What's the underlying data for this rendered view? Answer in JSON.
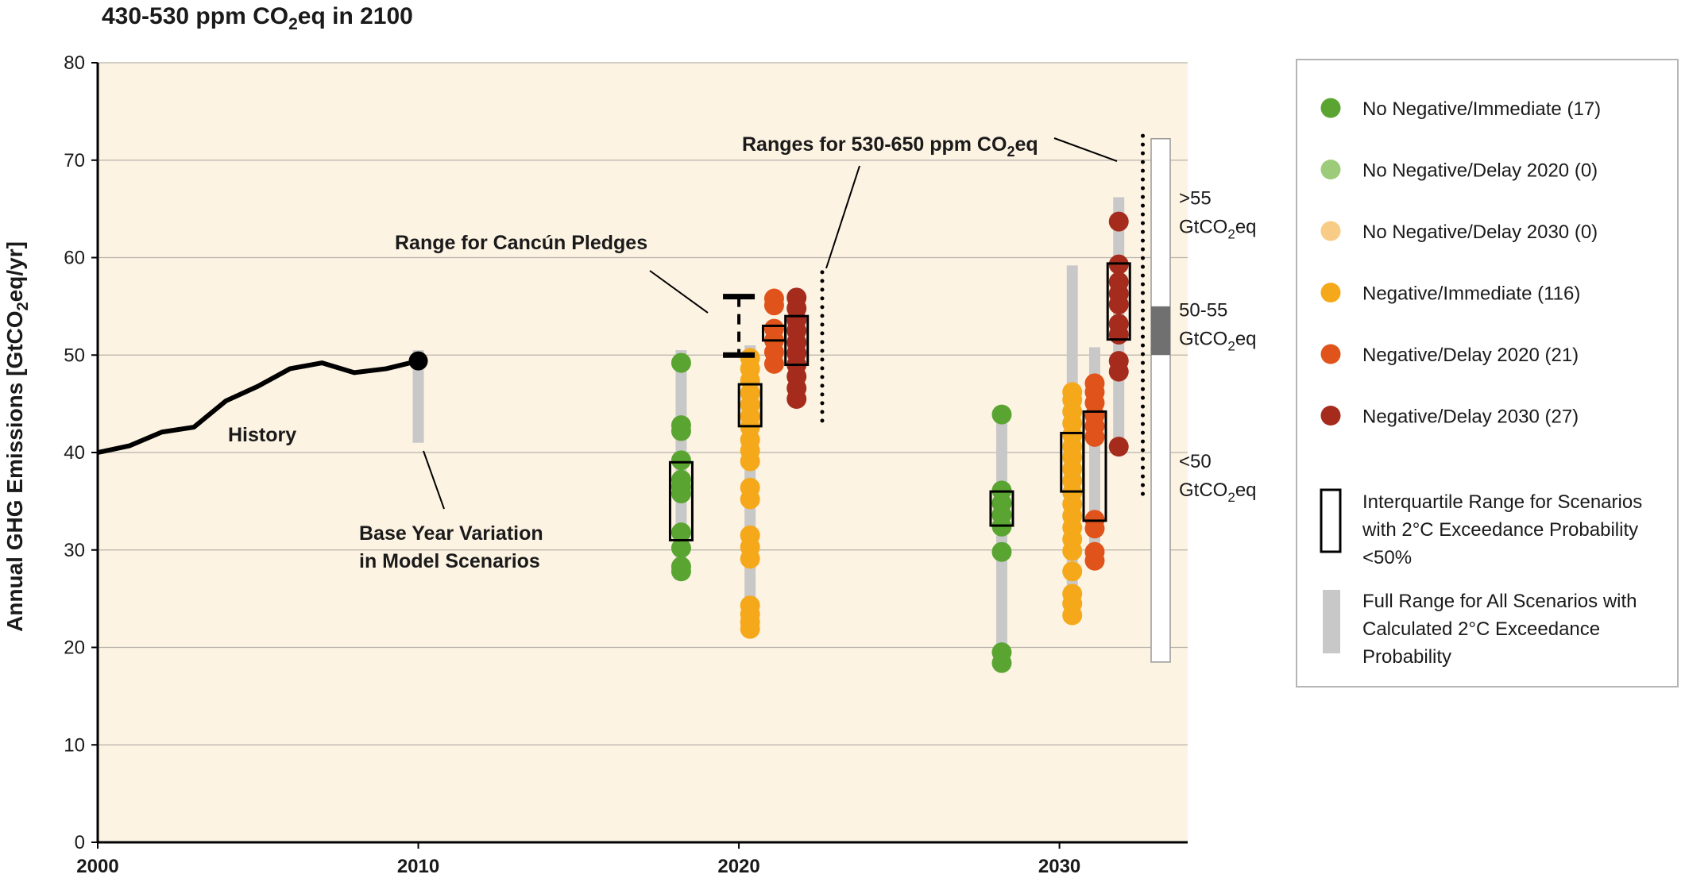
{
  "chart_data": {
    "type": "scatter",
    "title_parts": [
      "430-530 ppm CO",
      "2",
      "eq in 2100"
    ],
    "ylabel_parts": [
      "Annual GHG Emissions [GtCO",
      "2",
      "eq/yr]"
    ],
    "xlim": [
      2000,
      2034
    ],
    "ylim": [
      0,
      80
    ],
    "x_ticks": [
      "2000",
      "2010",
      "2020",
      "2030"
    ],
    "y_ticks": [
      "0",
      "10",
      "20",
      "30",
      "40",
      "50",
      "60",
      "70",
      "80"
    ],
    "grid": true,
    "colors": {
      "plot_bg": "#fdf3e3",
      "history": "#000000",
      "full_range": "#c8c8c8",
      "no_neg_immediate": "#5aa532",
      "no_neg_delay2020": "#9ccc7a",
      "no_neg_delay2030": "#f8cc86",
      "neg_immediate": "#f5a91a",
      "neg_delay2020": "#e0541b",
      "neg_delay2030": "#a52b1d"
    },
    "history": {
      "label": "History",
      "x": [
        2000,
        2001,
        2002,
        2003,
        2004,
        2005,
        2006,
        2007,
        2008,
        2009,
        2010
      ],
      "y": [
        40.0,
        40.7,
        42.1,
        42.6,
        45.3,
        46.8,
        48.6,
        49.2,
        48.2,
        48.6,
        49.4
      ]
    },
    "base_year_variation": {
      "x": 2010,
      "range": [
        41,
        50.5
      ],
      "label_lines": [
        "Base Year Variation",
        "in Model Scenarios"
      ]
    },
    "cancun_pledges": {
      "x": 2020,
      "low": 50,
      "high": 56,
      "label": "Range for Cancún Pledges"
    },
    "ranges_530_650_label_parts": [
      "Ranges for 530-650 ppm CO",
      "2",
      "eq"
    ],
    "ranges_530_650": [
      {
        "x": 2022.6,
        "low": 42.5,
        "high": 58.5
      },
      {
        "x": 2032.6,
        "low": 35.5,
        "high": 72.5
      }
    ],
    "groups": [
      {
        "series": "No Negative/Immediate",
        "color_key": "no_neg_immediate",
        "x": 2018.2,
        "full_range": [
          27.5,
          50.5
        ],
        "iqr": [
          31,
          39
        ],
        "points": [
          27.8,
          28.3,
          30.2,
          31.8,
          35.8,
          36.5,
          37.2,
          39.2,
          42.2,
          42.8,
          49.2
        ]
      },
      {
        "series": "Negative/Immediate",
        "color_key": "neg_immediate",
        "x": 2020.35,
        "full_range": [
          21.5,
          51
        ],
        "iqr": [
          42.7,
          47
        ],
        "points": [
          21.9,
          22.6,
          23.4,
          24.3,
          29.1,
          30.3,
          31.5,
          35.2,
          36.4,
          39.1,
          40.2,
          41.3,
          42.6,
          43.7,
          44.9,
          46.1,
          47.4,
          48.6,
          49.7
        ]
      },
      {
        "series": "Negative/Delay 2020",
        "color_key": "neg_delay2020",
        "x": 2021.1,
        "full_range": null,
        "iqr": [
          51.5,
          53
        ],
        "points": [
          49.1,
          50.3,
          51.5,
          52.7,
          55.1,
          55.8
        ]
      },
      {
        "series": "Negative/Delay 2030",
        "color_key": "neg_delay2030",
        "x": 2021.8,
        "full_range": null,
        "iqr": [
          49,
          54
        ],
        "points": [
          45.5,
          46.6,
          47.8,
          49.0,
          50.2,
          51.3,
          52.5,
          53.6,
          54.8,
          55.9
        ]
      },
      {
        "series": "No Negative/Immediate",
        "color_key": "no_neg_immediate",
        "x": 2028.2,
        "full_range": [
          18.5,
          44
        ],
        "iqr": [
          32.5,
          36
        ],
        "points": [
          18.4,
          19.5,
          29.8,
          32.4,
          33.6,
          34.8,
          36.1,
          43.9
        ]
      },
      {
        "series": "Negative/Immediate",
        "color_key": "neg_immediate",
        "x": 2030.4,
        "full_range": [
          23,
          59.2
        ],
        "iqr": [
          36,
          42
        ],
        "points": [
          23.3,
          24.5,
          25.5,
          27.8,
          29.9,
          31.1,
          32.3,
          33.5,
          34.7,
          35.9,
          37.1,
          38.3,
          39.5,
          40.6,
          41.8,
          43.0,
          44.2,
          45.4,
          46.2
        ]
      },
      {
        "series": "Negative/Delay 2020",
        "color_key": "neg_delay2020",
        "x": 2031.1,
        "full_range": [
          28.5,
          50.8
        ],
        "iqr": [
          33,
          44.2
        ],
        "points": [
          28.9,
          29.8,
          32.2,
          33.1,
          41.6,
          42.7,
          43.8,
          45.1,
          46.2,
          47.1
        ]
      },
      {
        "series": "Negative/Delay 2030",
        "color_key": "neg_delay2030",
        "x": 2031.85,
        "full_range": [
          40.5,
          66.2
        ],
        "iqr": [
          51.6,
          59.4
        ],
        "points": [
          40.6,
          48.3,
          49.4,
          52.1,
          53.2,
          55.2,
          56.3,
          57.5,
          59.3,
          63.7
        ]
      }
    ],
    "side_bar": {
      "full": [
        18.5,
        72.2
      ],
      "mid_band": [
        50,
        55
      ],
      "labels": [
        {
          "lines": [
            ">55",
            "GtCO|2|eq"
          ],
          "level": 64
        },
        {
          "lines": [
            "50-55",
            "GtCO|2|eq"
          ],
          "level": 52.5
        },
        {
          "lines": [
            "<50",
            "GtCO|2|eq"
          ],
          "level": 37
        }
      ]
    }
  },
  "legend": {
    "items": [
      {
        "label": "No Negative/Immediate (17)",
        "color_key": "no_neg_immediate"
      },
      {
        "label": "No Negative/Delay 2020 (0)",
        "color_key": "no_neg_delay2020"
      },
      {
        "label": "No Negative/Delay 2030 (0)",
        "color_key": "no_neg_delay2030"
      },
      {
        "label": "Negative/Immediate (116)",
        "color_key": "neg_immediate"
      },
      {
        "label": "Negative/Delay 2020 (21)",
        "color_key": "neg_delay2020"
      },
      {
        "label": "Negative/Delay 2030 (27)",
        "color_key": "neg_delay2030"
      }
    ],
    "iqr_label_lines": [
      "Interquartile Range for Scenarios",
      "with 2°C Exceedance Probability",
      "<50%"
    ],
    "full_range_label_lines": [
      "Full Range for All Scenarios with",
      "Calculated 2°C Exceedance",
      "Probability"
    ]
  }
}
